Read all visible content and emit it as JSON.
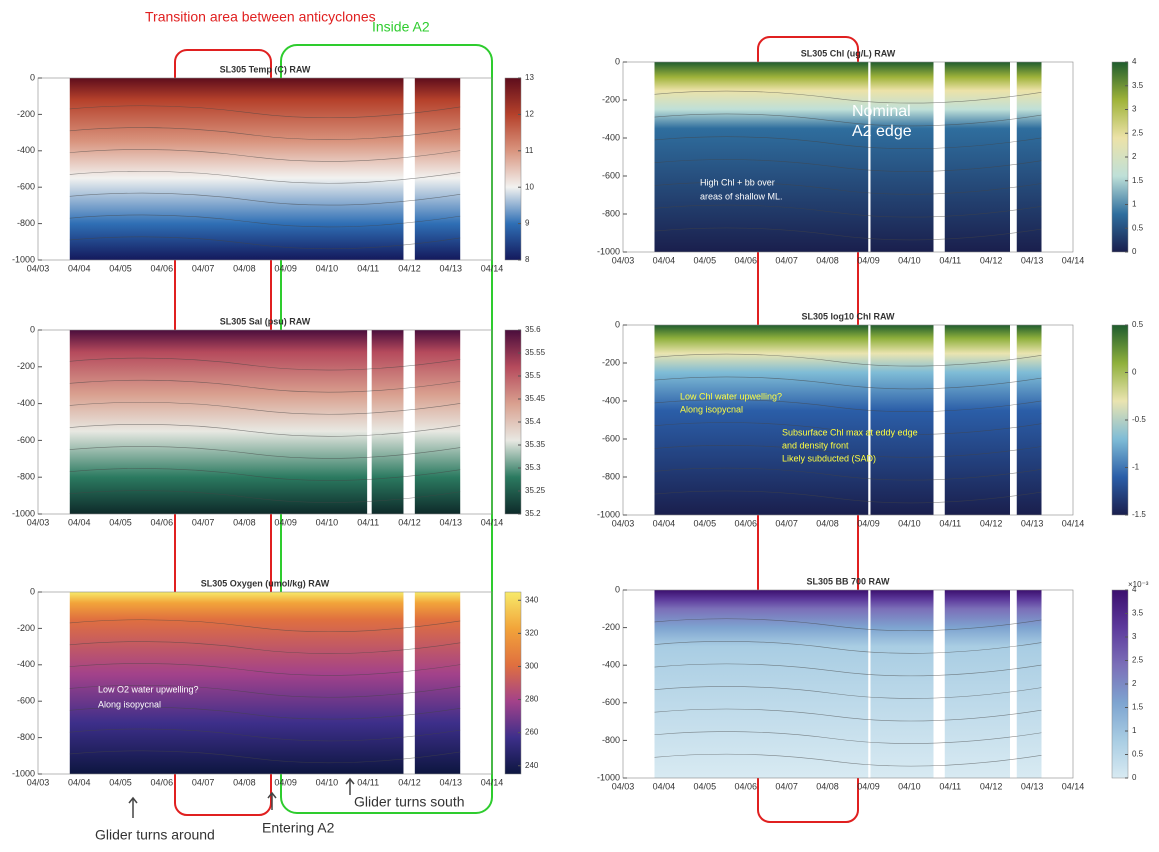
{
  "header": {
    "transition": "Transition area between anticyclones",
    "inside": "Inside A2"
  },
  "footer": {
    "turns_around": "Glider turns around",
    "entering": "Entering A2",
    "turns_south": "Glider turns south"
  },
  "chart_data": [
    {
      "type": "section",
      "title": "SL305 Temp (C) RAW",
      "xticks": [
        "04/03",
        "04/04",
        "04/05",
        "04/06",
        "04/07",
        "04/08",
        "04/09",
        "04/10",
        "04/11",
        "04/12",
        "04/13",
        "04/14"
      ],
      "ylim": [
        -1000,
        0
      ],
      "yticks": [
        -1000,
        -800,
        -600,
        -400,
        -200,
        0
      ],
      "clim": [
        8,
        13
      ],
      "cticks": [
        8,
        9,
        10,
        11,
        12,
        13
      ],
      "colormap": [
        "#14195c",
        "#2f6fb5",
        "#f2f2f0",
        "#d9957f",
        "#b5412b",
        "#5e0d1c"
      ],
      "annotations": []
    },
    {
      "type": "section",
      "title": "SL305 Sal (psu) RAW",
      "xticks": [
        "04/03",
        "04/04",
        "04/05",
        "04/06",
        "04/07",
        "04/08",
        "04/09",
        "04/10",
        "04/11",
        "04/12",
        "04/13",
        "04/14"
      ],
      "ylim": [
        -1000,
        0
      ],
      "yticks": [
        -1000,
        -800,
        -600,
        -400,
        -200,
        0
      ],
      "clim": [
        35.2,
        35.6
      ],
      "cticks": [
        35.2,
        35.25,
        35.3,
        35.35,
        35.4,
        35.45,
        35.5,
        35.55,
        35.6
      ],
      "colormap": [
        "#0e2a2a",
        "#2b7a60",
        "#e8e8e2",
        "#d9a08f",
        "#b54a5c",
        "#4a0d3c"
      ],
      "annotations": []
    },
    {
      "type": "section",
      "title": "SL305 Oxygen (umol/kg) RAW",
      "xticks": [
        "04/03",
        "04/04",
        "04/05",
        "04/06",
        "04/07",
        "04/08",
        "04/09",
        "04/10",
        "04/11",
        "04/12",
        "04/13",
        "04/14"
      ],
      "ylim": [
        -1000,
        0
      ],
      "yticks": [
        -1000,
        -800,
        -600,
        -400,
        -200,
        0
      ],
      "clim": [
        235,
        345
      ],
      "cticks": [
        240,
        260,
        280,
        300,
        320,
        340
      ],
      "colormap": [
        "#0d1640",
        "#3d2f8a",
        "#a3428a",
        "#e0703f",
        "#f2a43a",
        "#f7ea6a"
      ],
      "annotations": [
        "Low O2 water upwelling?",
        "Along isopycnal"
      ]
    },
    {
      "type": "section",
      "title": "SL305 Chl (ug/L) RAW",
      "xticks": [
        "04/03",
        "04/04",
        "04/05",
        "04/06",
        "04/07",
        "04/08",
        "04/09",
        "04/10",
        "04/11",
        "04/12",
        "04/13",
        "04/14"
      ],
      "ylim": [
        -1000,
        0
      ],
      "yticks": [
        -1000,
        -800,
        -600,
        -400,
        -200,
        0
      ],
      "clim": [
        0,
        4
      ],
      "cticks": [
        0,
        0.5,
        1,
        1.5,
        2,
        2.5,
        3,
        3.5,
        4
      ],
      "colormap": [
        "#1a1f4d",
        "#2f6e9e",
        "#bfe0d8",
        "#ece2a8",
        "#9fb33a",
        "#1f5c2e"
      ],
      "annotations": [
        "Nominal",
        "A2 edge",
        "High Chl + bb over",
        "areas of shallow ML."
      ]
    },
    {
      "type": "section",
      "title": "SL305 log10 Chl RAW",
      "xticks": [
        "04/03",
        "04/04",
        "04/05",
        "04/06",
        "04/07",
        "04/08",
        "04/09",
        "04/10",
        "04/11",
        "04/12",
        "04/13",
        "04/14"
      ],
      "ylim": [
        -1000,
        0
      ],
      "yticks": [
        -1000,
        -800,
        -600,
        -400,
        -200,
        0
      ],
      "clim": [
        -1.5,
        0.5
      ],
      "cticks": [
        -1.5,
        -1,
        -0.5,
        0,
        0.5
      ],
      "colormap": [
        "#1a1f4d",
        "#2b5ea8",
        "#7fbcd6",
        "#eae4b0",
        "#8fb03c",
        "#1f5c2e"
      ],
      "annotations": [
        "Low Chl water upwelling?",
        "Along isopycnal",
        "Subsurface Chl max at eddy edge",
        "and density front",
        "Likely subducted (SAD)"
      ]
    },
    {
      "type": "section",
      "title": "SL305 BB 700 RAW",
      "xticks": [
        "04/03",
        "04/04",
        "04/05",
        "04/06",
        "04/07",
        "04/08",
        "04/09",
        "04/10",
        "04/11",
        "04/12",
        "04/13",
        "04/14"
      ],
      "ylim": [
        -1000,
        0
      ],
      "yticks": [
        -1000,
        -800,
        -600,
        -400,
        -200,
        0
      ],
      "clim": [
        0,
        4
      ],
      "cticks": [
        0,
        0.5,
        1,
        1.5,
        2,
        2.5,
        3,
        3.5,
        4
      ],
      "cunit": "×10⁻³",
      "colormap": [
        "#d8eaf2",
        "#a9cde3",
        "#7ea4d0",
        "#7b6fb8",
        "#5d3a9c",
        "#3b0f6e"
      ],
      "annotations": []
    }
  ]
}
